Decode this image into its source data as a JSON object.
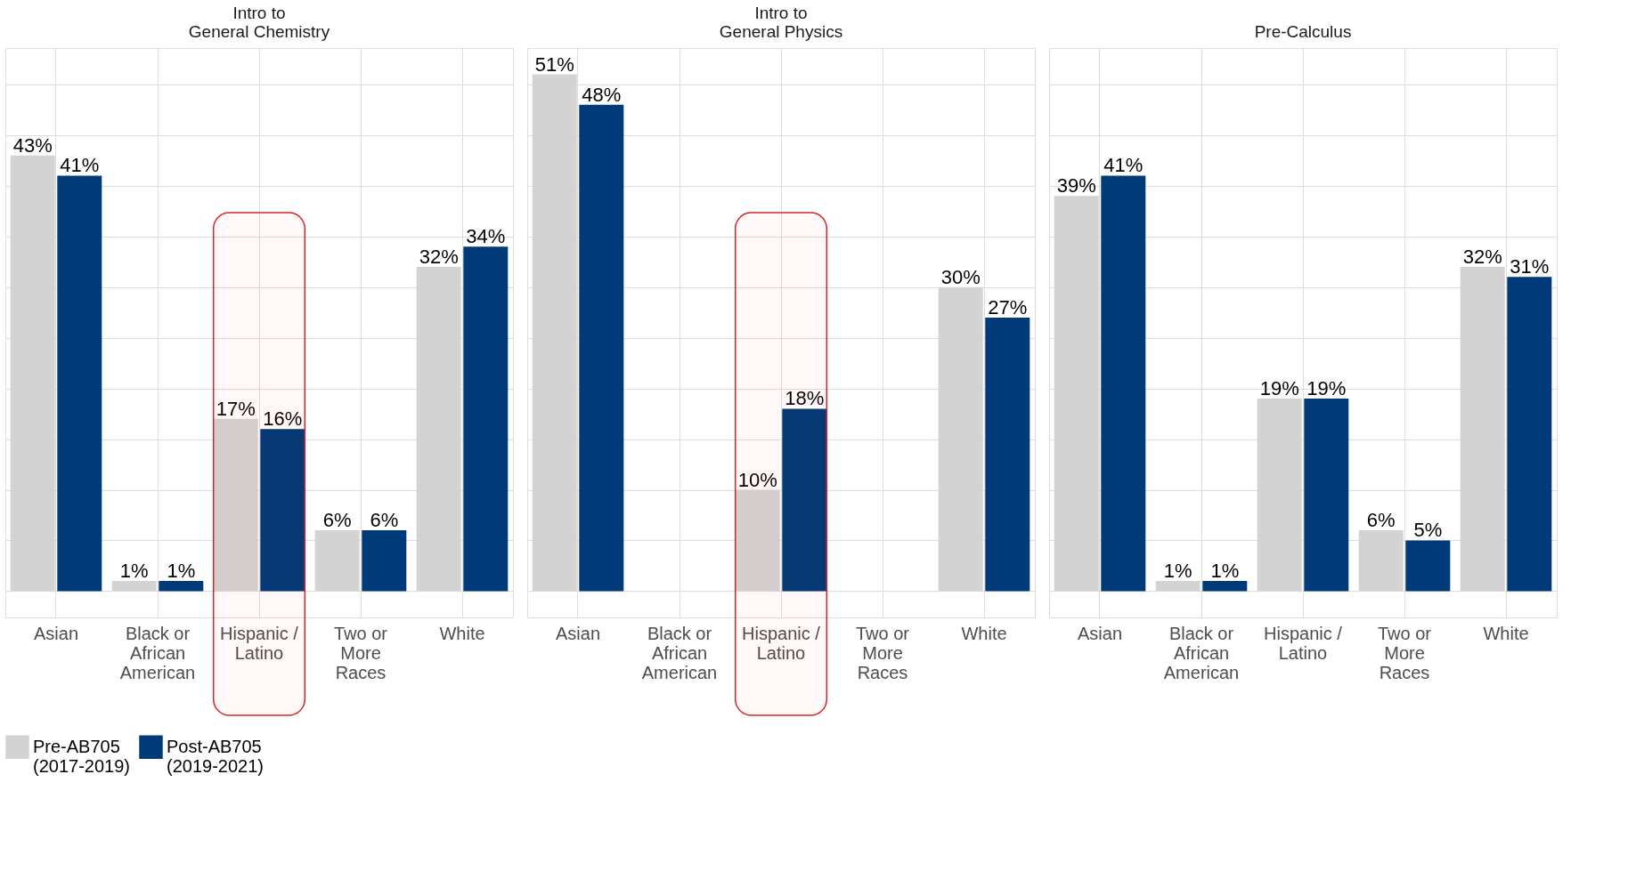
{
  "chart_data": [
    {
      "type": "bar",
      "title": "Intro to\nGeneral Chemistry",
      "categories": [
        "Asian",
        "Black or\nAfrican\nAmerican",
        "Hispanic /\nLatino",
        "Two or\nMore\nRaces",
        "White"
      ],
      "series": [
        {
          "name": "Pre-AB705\n(2017-2019)",
          "color": "#d3d3d3",
          "values": [
            43,
            1,
            17,
            6,
            32
          ],
          "value_labels": [
            "43%",
            "1%",
            "17%",
            "6%",
            "32%"
          ]
        },
        {
          "name": "Post-AB705\n(2019-2021)",
          "color": "#003a78",
          "values": [
            41,
            1,
            16,
            6,
            34
          ],
          "value_labels": [
            "41%",
            "1%",
            "16%",
            "6%",
            "34%"
          ]
        }
      ],
      "ylim": [
        -2.6,
        53.6
      ],
      "yticks": [
        {
          "value": 0,
          "label": null
        },
        {
          "value": 5,
          "label": null
        },
        {
          "value": 10,
          "label": null
        },
        {
          "value": 15,
          "label": null
        },
        {
          "value": 20,
          "label": null
        },
        {
          "value": 25,
          "label": null
        },
        {
          "value": 30,
          "label": null
        },
        {
          "value": 35,
          "label": null
        },
        {
          "value": 40,
          "label": null
        },
        {
          "value": 45,
          "label": null
        },
        {
          "value": 50,
          "label": null
        }
      ],
      "tick_labels": "x",
      "grid": true,
      "legend": "bottom",
      "bands": [
        {
          "axis": "x",
          "from": "Hispanic /\nLatino",
          "to": "Hispanic /\nLatino",
          "label": null,
          "color": "#d62728"
        }
      ]
    },
    {
      "type": "bar",
      "title": "Intro to\nGeneral Physics",
      "categories": [
        "Asian",
        "Black or\nAfrican\nAmerican",
        "Hispanic /\nLatino",
        "Two or\nMore\nRaces",
        "White"
      ],
      "series": [
        {
          "name": "Pre-AB705\n(2017-2019)",
          "color": "#d3d3d3",
          "values": [
            51,
            null,
            10,
            null,
            30
          ],
          "value_labels": [
            "51%",
            null,
            "10%",
            null,
            "30%"
          ]
        },
        {
          "name": "Post-AB705\n(2019-2021)",
          "color": "#003a78",
          "values": [
            48,
            null,
            18,
            null,
            27
          ],
          "value_labels": [
            "48%",
            null,
            "18%",
            null,
            "27%"
          ]
        }
      ],
      "ylim": [
        -2.6,
        53.6
      ],
      "yticks": [
        {
          "value": 0,
          "label": null
        },
        {
          "value": 5,
          "label": null
        },
        {
          "value": 10,
          "label": null
        },
        {
          "value": 15,
          "label": null
        },
        {
          "value": 20,
          "label": null
        },
        {
          "value": 25,
          "label": null
        },
        {
          "value": 30,
          "label": null
        },
        {
          "value": 35,
          "label": null
        },
        {
          "value": 40,
          "label": null
        },
        {
          "value": 45,
          "label": null
        },
        {
          "value": 50,
          "label": null
        }
      ],
      "tick_labels": "x",
      "grid": true,
      "legend": "bottom",
      "bands": [
        {
          "axis": "x",
          "from": "Hispanic /\nLatino",
          "to": "Hispanic /\nLatino",
          "label": null,
          "color": "#d62728"
        }
      ]
    },
    {
      "type": "bar",
      "title": "Pre-Calculus",
      "categories": [
        "Asian",
        "Black or\nAfrican\nAmerican",
        "Hispanic /\nLatino",
        "Two or\nMore\nRaces",
        "White"
      ],
      "series": [
        {
          "name": "Pre-AB705\n(2017-2019)",
          "color": "#d3d3d3",
          "values": [
            39,
            1,
            19,
            6,
            32
          ],
          "value_labels": [
            "39%",
            "1%",
            "19%",
            "6%",
            "32%"
          ]
        },
        {
          "name": "Post-AB705\n(2019-2021)",
          "color": "#003a78",
          "values": [
            41,
            1,
            19,
            5,
            31
          ],
          "value_labels": [
            "41%",
            "1%",
            "19%",
            "5%",
            "31%"
          ]
        }
      ],
      "ylim": [
        -2.6,
        53.6
      ],
      "yticks": [
        {
          "value": 0,
          "label": null
        },
        {
          "value": 5,
          "label": null
        },
        {
          "value": 10,
          "label": null
        },
        {
          "value": 15,
          "label": null
        },
        {
          "value": 20,
          "label": null
        },
        {
          "value": 25,
          "label": null
        },
        {
          "value": 30,
          "label": null
        },
        {
          "value": 35,
          "label": null
        },
        {
          "value": 40,
          "label": null
        },
        {
          "value": 45,
          "label": null
        },
        {
          "value": 50,
          "label": null
        }
      ],
      "tick_labels": "x",
      "grid": true,
      "legend": "bottom"
    }
  ]
}
